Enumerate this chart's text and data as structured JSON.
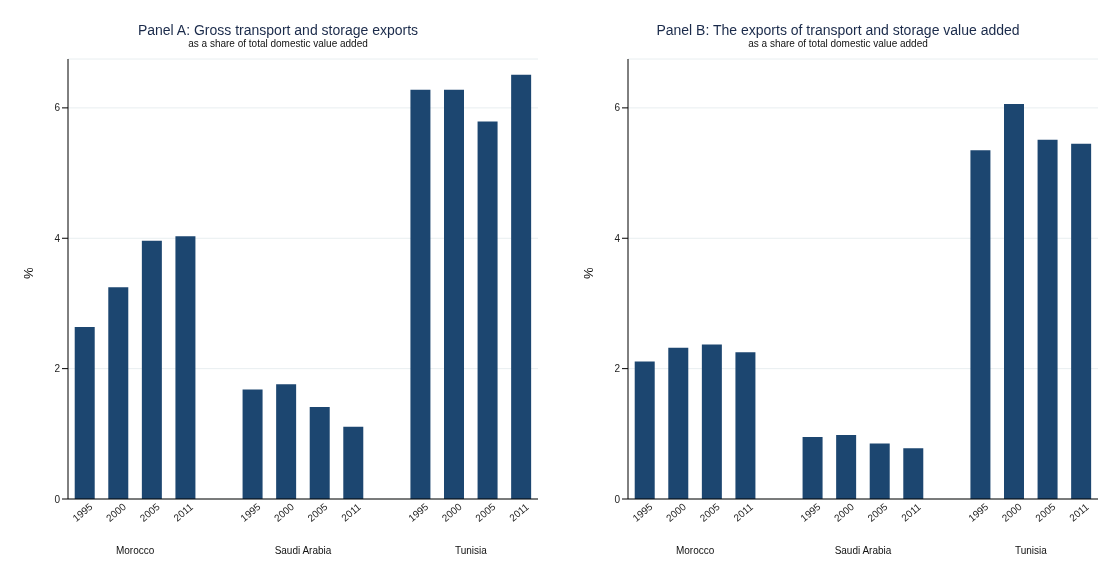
{
  "chart_data": [
    {
      "type": "bar",
      "title": "Panel A: Gross transport and storage exports",
      "subtitle": "as a share of total domestic value added",
      "ylabel": "%",
      "categories": [
        "1995",
        "2000",
        "2005",
        "2011",
        null,
        "1995",
        "2000",
        "2005",
        "2011",
        null,
        "1995",
        "2000",
        "2005",
        "2011"
      ],
      "values": [
        2.64,
        3.25,
        3.96,
        4.03,
        null,
        1.68,
        1.76,
        1.41,
        1.11,
        null,
        6.28,
        6.28,
        5.79,
        6.51
      ],
      "color": "#1c4670",
      "ylim": [
        0,
        6.75
      ],
      "yticks": [
        0,
        2,
        4,
        6
      ],
      "grid": "y",
      "legend": false,
      "annotations": [
        "Morocco",
        "Saudi Arabia",
        "Tunisia"
      ]
    },
    {
      "type": "bar",
      "title": "Panel B: The exports of transport and storage value added",
      "subtitle": "as a share of total domestic value added",
      "ylabel": "%",
      "categories": [
        "1995",
        "2000",
        "2005",
        "2011",
        null,
        "1995",
        "2000",
        "2005",
        "2011",
        null,
        "1995",
        "2000",
        "2005",
        "2011"
      ],
      "values": [
        2.11,
        2.32,
        2.37,
        2.25,
        null,
        0.95,
        0.98,
        0.85,
        0.78,
        null,
        5.35,
        6.06,
        5.51,
        5.45
      ],
      "color": "#1c4670",
      "ylim": [
        0,
        6.75
      ],
      "yticks": [
        0,
        2,
        4,
        6
      ],
      "grid": "y",
      "legend": false,
      "annotations": [
        "Morocco",
        "Saudi Arabia",
        "Tunisia"
      ]
    }
  ]
}
